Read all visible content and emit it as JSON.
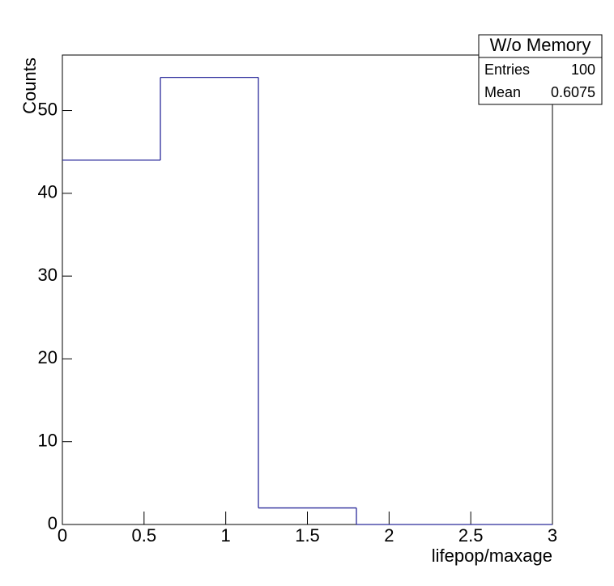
{
  "chart_data": {
    "type": "histogram",
    "x_label": "lifepop/maxage",
    "y_label": "Counts",
    "bins": [
      0,
      0.6,
      1.2,
      1.8,
      2.4,
      3.0
    ],
    "values": [
      44,
      54,
      2,
      0,
      0
    ],
    "color": "#2b2b9b",
    "xlim": [
      0,
      3
    ],
    "ylim": [
      0,
      56.7
    ],
    "xticks": [
      0,
      0.5,
      1,
      1.5,
      2,
      2.5,
      3
    ],
    "yticks": [
      0,
      10,
      20,
      30,
      40,
      50
    ],
    "stats_box": {
      "title": "W/o Memory",
      "rows": [
        {
          "label": "Entries",
          "value": 100
        },
        {
          "label": "Mean",
          "value": 0.6075
        }
      ]
    }
  }
}
